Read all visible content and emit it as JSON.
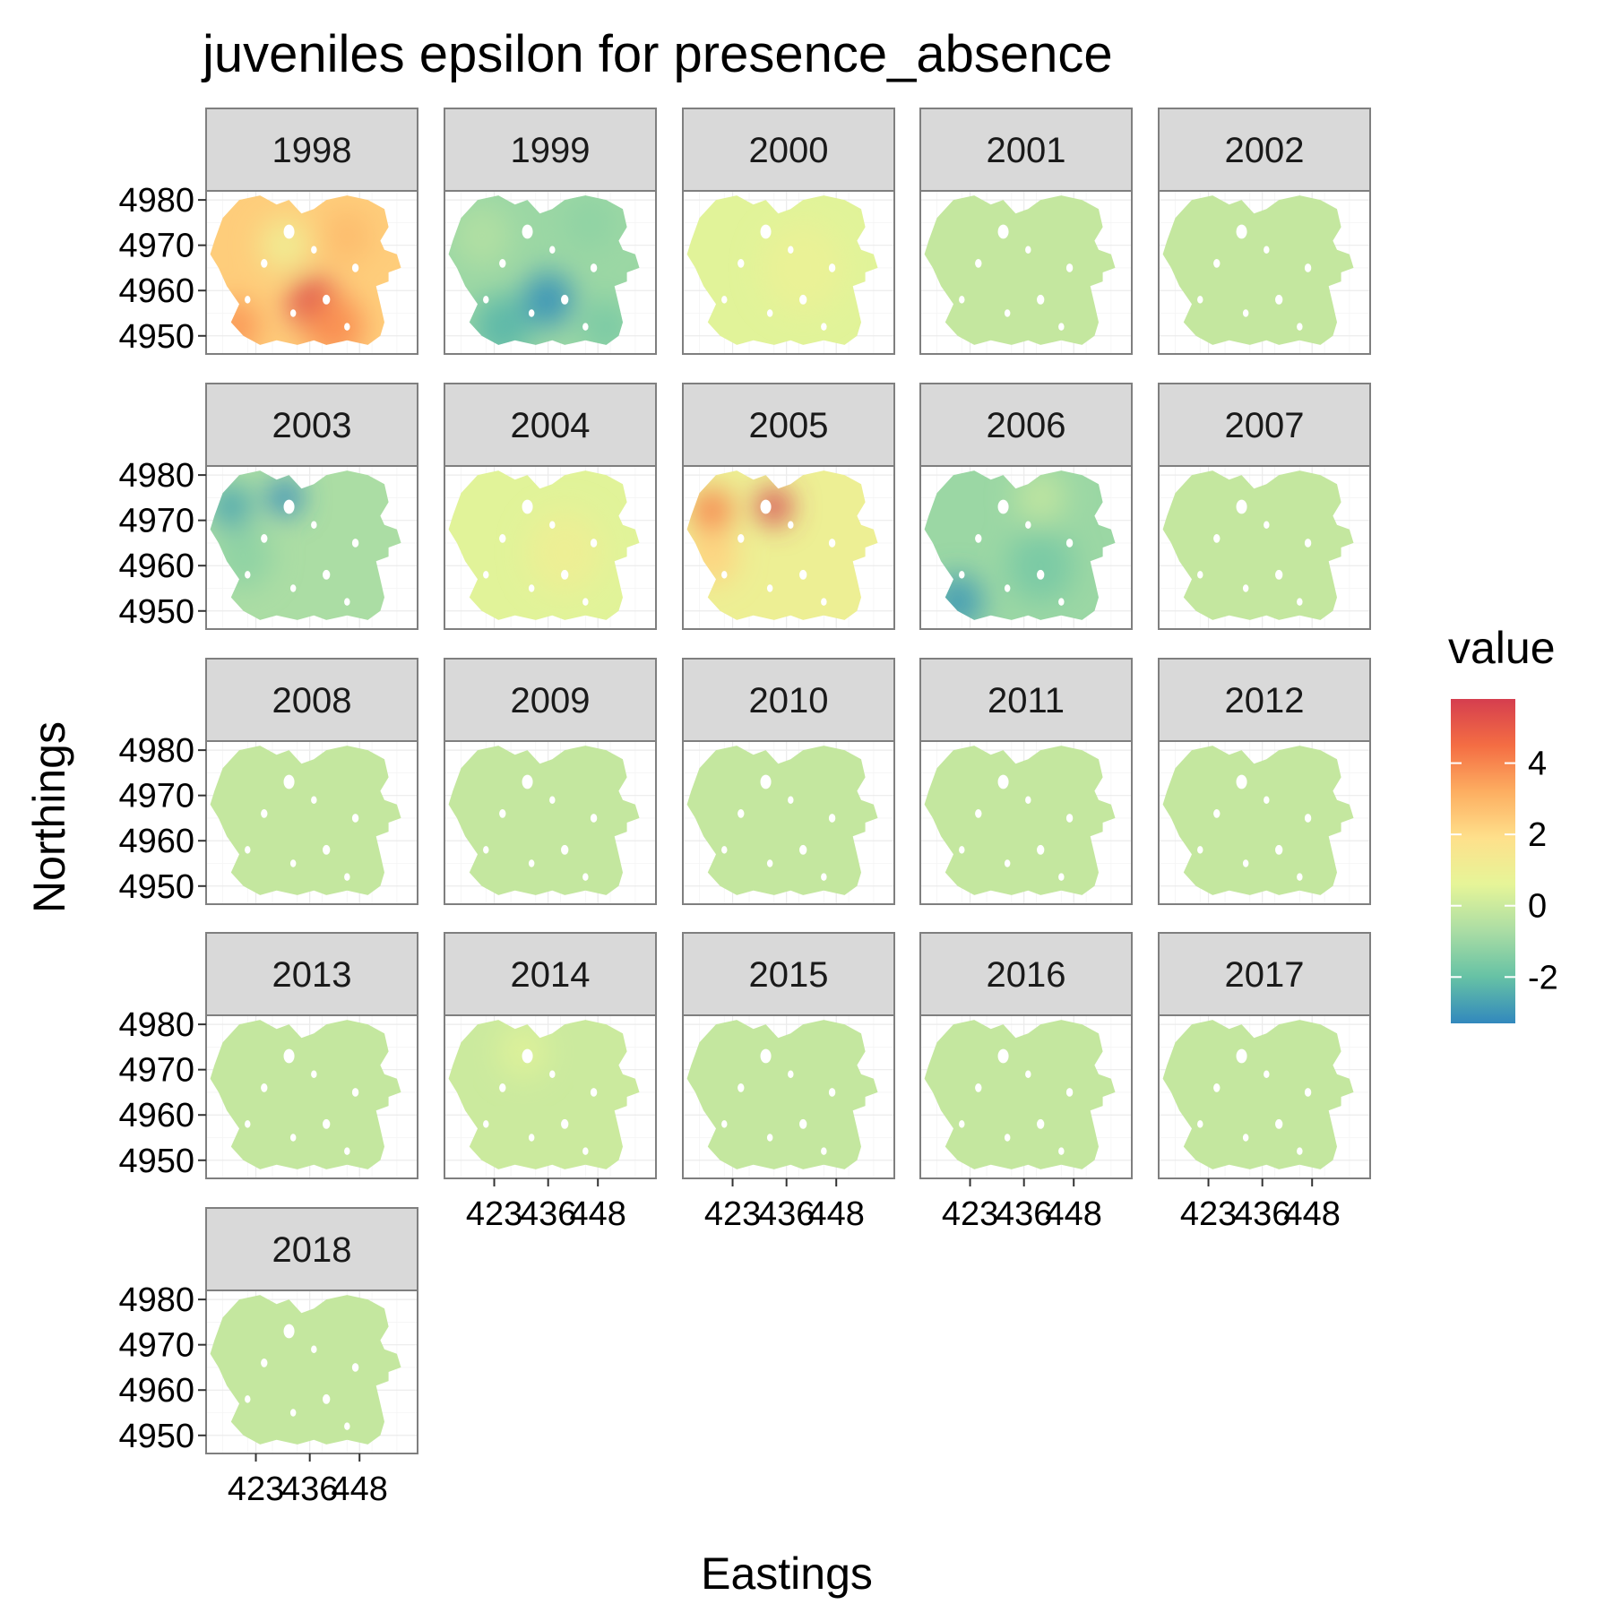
{
  "chart_data": {
    "type": "heatmap",
    "title": "juveniles epsilon for presence_absence",
    "xlabel": "Eastings",
    "ylabel": "Northings",
    "xlim": [
      411,
      462
    ],
    "ylim": [
      4946,
      4982
    ],
    "x_ticks": [
      423,
      436,
      448
    ],
    "x_tick_labels": [
      "423",
      "436",
      "448"
    ],
    "y_ticks": [
      4950,
      4960,
      4970,
      4980
    ],
    "y_tick_labels": [
      "4950",
      "4960",
      "4970",
      "4980"
    ],
    "grid": true,
    "facet_columns": 5,
    "legend": {
      "title": "value",
      "position": "right",
      "range": [
        -3.3,
        5.8
      ],
      "breaks": [
        4,
        2,
        0,
        -2
      ],
      "break_labels": [
        "4",
        "2",
        "0",
        "-2"
      ],
      "colors": [
        "#3288bd",
        "#66c2a5",
        "#abdda4",
        "#e6f598",
        "#fee08b",
        "#fdae61",
        "#f46d43",
        "#d53e4f"
      ]
    },
    "panels": [
      {
        "year": "1998",
        "background": 2.4,
        "fields": [
          {
            "x": 437,
            "y": 4957,
            "value": 5.5,
            "spread": 6
          },
          {
            "x": 442,
            "y": 4952,
            "value": 3.8,
            "spread": 7
          },
          {
            "x": 418,
            "y": 4952,
            "value": 3.6,
            "spread": 6
          },
          {
            "x": 430,
            "y": 4970,
            "value": 1.2,
            "spread": 6
          },
          {
            "x": 445,
            "y": 4972,
            "value": 2.8,
            "spread": 6
          }
        ]
      },
      {
        "year": "1999",
        "background": -1.0,
        "fields": [
          {
            "x": 436,
            "y": 4958,
            "value": -3.0,
            "spread": 6
          },
          {
            "x": 425,
            "y": 4952,
            "value": -2.2,
            "spread": 7
          },
          {
            "x": 450,
            "y": 4952,
            "value": -1.6,
            "spread": 6
          },
          {
            "x": 420,
            "y": 4972,
            "value": -0.6,
            "spread": 7
          },
          {
            "x": 446,
            "y": 4975,
            "value": -1.2,
            "spread": 6
          }
        ]
      },
      {
        "year": "2000",
        "background": 0.5,
        "fields": [
          {
            "x": 440,
            "y": 4965,
            "value": 0.8,
            "spread": 10
          }
        ]
      },
      {
        "year": "2001",
        "background": -0.15,
        "fields": []
      },
      {
        "year": "2002",
        "background": -0.15,
        "fields": []
      },
      {
        "year": "2003",
        "background": -0.7,
        "fields": [
          {
            "x": 430,
            "y": 4975,
            "value": -3.3,
            "spread": 4
          },
          {
            "x": 417,
            "y": 4973,
            "value": -2.6,
            "spread": 5
          },
          {
            "x": 420,
            "y": 4962,
            "value": -1.2,
            "spread": 7
          }
        ]
      },
      {
        "year": "2004",
        "background": 0.5,
        "fields": [
          {
            "x": 440,
            "y": 4963,
            "value": 1.0,
            "spread": 9
          }
        ]
      },
      {
        "year": "2005",
        "background": 1.0,
        "fields": [
          {
            "x": 433,
            "y": 4973,
            "value": 5.8,
            "spread": 4
          },
          {
            "x": 418,
            "y": 4972,
            "value": 4.0,
            "spread": 5
          },
          {
            "x": 418,
            "y": 4962,
            "value": 2.2,
            "spread": 6
          }
        ]
      },
      {
        "year": "2006",
        "background": -1.0,
        "fields": [
          {
            "x": 420,
            "y": 4952,
            "value": -2.8,
            "spread": 6
          },
          {
            "x": 440,
            "y": 4960,
            "value": -1.6,
            "spread": 8
          },
          {
            "x": 440,
            "y": 4975,
            "value": -0.3,
            "spread": 6
          }
        ]
      },
      {
        "year": "2007",
        "background": -0.15,
        "fields": []
      },
      {
        "year": "2008",
        "background": -0.15,
        "fields": []
      },
      {
        "year": "2009",
        "background": -0.15,
        "fields": []
      },
      {
        "year": "2010",
        "background": -0.15,
        "fields": []
      },
      {
        "year": "2011",
        "background": -0.15,
        "fields": []
      },
      {
        "year": "2012",
        "background": -0.15,
        "fields": []
      },
      {
        "year": "2013",
        "background": -0.15,
        "fields": []
      },
      {
        "year": "2014",
        "background": 0.0,
        "fields": [
          {
            "x": 430,
            "y": 4974,
            "value": 0.4,
            "spread": 6
          }
        ]
      },
      {
        "year": "2015",
        "background": -0.15,
        "fields": []
      },
      {
        "year": "2016",
        "background": -0.15,
        "fields": []
      },
      {
        "year": "2017",
        "background": -0.15,
        "fields": []
      },
      {
        "year": "2018",
        "background": -0.15,
        "fields": []
      }
    ]
  }
}
